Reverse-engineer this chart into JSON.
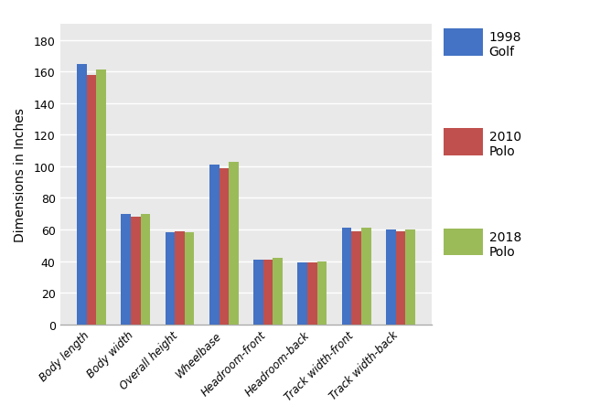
{
  "categories": [
    "Body length",
    "Body width",
    "Overall height",
    "Wheelbase",
    "Headroom-front",
    "Headroom-back",
    "Track width-front",
    "Track width-back"
  ],
  "series": {
    "1998\nGolf": [
      165,
      70,
      58,
      101,
      41,
      39,
      61,
      60
    ],
    "2010\nPolo": [
      158,
      68,
      59,
      99,
      41,
      39,
      59,
      59
    ],
    "2018\nPolo": [
      161,
      70,
      58,
      103,
      42,
      40,
      61,
      60
    ]
  },
  "colors": {
    "1998\nGolf": "#4472C4",
    "2010\nPolo": "#C0504D",
    "2018\nPolo": "#9BBB59"
  },
  "ylabel": "Dimensions in Inches",
  "ylim": [
    0,
    190
  ],
  "yticks": [
    0,
    20,
    40,
    60,
    80,
    100,
    120,
    140,
    160,
    180
  ],
  "plot_bg_color": "#E9E9E9",
  "fig_bg_color": "#FFFFFF",
  "grid_color": "#FFFFFF",
  "bar_width": 0.22,
  "legend_labels": [
    "1998\nGolf",
    "2010\nPolo",
    "2018\nPolo"
  ]
}
